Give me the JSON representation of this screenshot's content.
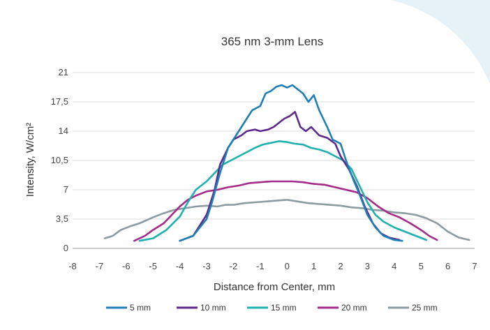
{
  "chart_data": {
    "type": "line",
    "title": "365 nm 3-mm Lens",
    "xlabel": "Distance from Center, mm",
    "ylabel": "Intensity, W/cm²",
    "xlim": [
      -8,
      7
    ],
    "ylim": [
      0,
      21
    ],
    "xticks": [
      "-8",
      "-7",
      "-6",
      "-5",
      "-4",
      "-3",
      "-2",
      "-1",
      "0",
      "1",
      "2",
      "3",
      "4",
      "5",
      "6",
      "7"
    ],
    "yticks": [
      "0",
      "3,5",
      "7",
      "10,5",
      "14",
      "17,5",
      "21"
    ],
    "grid": "horizontal",
    "legend_position": "bottom",
    "series": [
      {
        "name": "5 mm",
        "color": "#1f7fb4",
        "points": [
          [
            -4.0,
            0.9
          ],
          [
            -3.5,
            1.5
          ],
          [
            -3.0,
            3.5
          ],
          [
            -2.8,
            5.5
          ],
          [
            -2.5,
            9.0
          ],
          [
            -2.2,
            12.0
          ],
          [
            -2.0,
            13.0
          ],
          [
            -1.7,
            14.5
          ],
          [
            -1.5,
            15.5
          ],
          [
            -1.3,
            16.5
          ],
          [
            -1.0,
            17.0
          ],
          [
            -0.8,
            18.5
          ],
          [
            -0.6,
            18.8
          ],
          [
            -0.4,
            19.3
          ],
          [
            -0.2,
            19.5
          ],
          [
            0.0,
            19.2
          ],
          [
            0.2,
            19.5
          ],
          [
            0.4,
            19.0
          ],
          [
            0.6,
            18.5
          ],
          [
            0.8,
            17.5
          ],
          [
            1.0,
            18.3
          ],
          [
            1.2,
            16.5
          ],
          [
            1.5,
            14.5
          ],
          [
            1.7,
            13.0
          ],
          [
            2.0,
            12.5
          ],
          [
            2.2,
            10.5
          ],
          [
            2.5,
            8.0
          ],
          [
            2.7,
            6.5
          ],
          [
            3.0,
            4.0
          ],
          [
            3.3,
            2.5
          ],
          [
            3.6,
            1.5
          ],
          [
            4.0,
            1.0
          ],
          [
            4.3,
            0.9
          ]
        ]
      },
      {
        "name": "10 mm",
        "color": "#5c2a8c",
        "points": [
          [
            -4.0,
            0.9
          ],
          [
            -3.5,
            1.5
          ],
          [
            -3.0,
            4.0
          ],
          [
            -2.7,
            7.0
          ],
          [
            -2.5,
            10.0
          ],
          [
            -2.2,
            12.0
          ],
          [
            -2.0,
            13.0
          ],
          [
            -1.7,
            13.5
          ],
          [
            -1.5,
            14.0
          ],
          [
            -1.2,
            14.2
          ],
          [
            -1.0,
            14.0
          ],
          [
            -0.7,
            14.2
          ],
          [
            -0.5,
            14.5
          ],
          [
            -0.3,
            15.0
          ],
          [
            -0.1,
            15.5
          ],
          [
            0.1,
            15.8
          ],
          [
            0.3,
            16.3
          ],
          [
            0.5,
            14.5
          ],
          [
            0.7,
            14.0
          ],
          [
            0.9,
            14.5
          ],
          [
            1.2,
            13.5
          ],
          [
            1.5,
            13.2
          ],
          [
            1.8,
            12.5
          ],
          [
            2.0,
            11.0
          ],
          [
            2.3,
            9.5
          ],
          [
            2.6,
            7.5
          ],
          [
            2.9,
            5.0
          ],
          [
            3.2,
            3.0
          ],
          [
            3.5,
            1.8
          ],
          [
            3.8,
            1.3
          ],
          [
            4.2,
            1.0
          ]
        ]
      },
      {
        "name": "15 mm",
        "color": "#1fb0b0",
        "points": [
          [
            -5.5,
            0.9
          ],
          [
            -5.0,
            1.2
          ],
          [
            -4.5,
            2.2
          ],
          [
            -4.0,
            3.8
          ],
          [
            -3.7,
            5.5
          ],
          [
            -3.4,
            7.0
          ],
          [
            -3.0,
            8.0
          ],
          [
            -2.7,
            9.0
          ],
          [
            -2.4,
            10.0
          ],
          [
            -2.1,
            10.5
          ],
          [
            -1.8,
            11.0
          ],
          [
            -1.5,
            11.5
          ],
          [
            -1.2,
            12.0
          ],
          [
            -0.9,
            12.4
          ],
          [
            -0.6,
            12.6
          ],
          [
            -0.3,
            12.8
          ],
          [
            0.0,
            12.7
          ],
          [
            0.3,
            12.5
          ],
          [
            0.6,
            12.4
          ],
          [
            0.9,
            12.0
          ],
          [
            1.2,
            11.8
          ],
          [
            1.5,
            11.5
          ],
          [
            1.8,
            11.0
          ],
          [
            2.1,
            10.5
          ],
          [
            2.4,
            9.5
          ],
          [
            2.7,
            7.5
          ],
          [
            3.0,
            5.5
          ],
          [
            3.3,
            4.0
          ],
          [
            3.6,
            3.2
          ],
          [
            4.0,
            2.5
          ],
          [
            4.4,
            2.0
          ],
          [
            4.8,
            1.5
          ],
          [
            5.2,
            1.0
          ]
        ]
      },
      {
        "name": "20 mm",
        "color": "#a52a8a",
        "points": [
          [
            -5.7,
            0.9
          ],
          [
            -5.3,
            1.5
          ],
          [
            -5.0,
            2.2
          ],
          [
            -4.6,
            3.0
          ],
          [
            -4.3,
            4.0
          ],
          [
            -4.0,
            5.0
          ],
          [
            -3.7,
            5.8
          ],
          [
            -3.4,
            6.3
          ],
          [
            -3.0,
            6.8
          ],
          [
            -2.6,
            7.0
          ],
          [
            -2.2,
            7.3
          ],
          [
            -1.8,
            7.5
          ],
          [
            -1.4,
            7.8
          ],
          [
            -1.0,
            7.9
          ],
          [
            -0.6,
            8.0
          ],
          [
            -0.2,
            8.0
          ],
          [
            0.2,
            8.0
          ],
          [
            0.6,
            7.9
          ],
          [
            1.0,
            7.7
          ],
          [
            1.4,
            7.6
          ],
          [
            1.8,
            7.3
          ],
          [
            2.2,
            7.0
          ],
          [
            2.6,
            6.7
          ],
          [
            3.0,
            6.0
          ],
          [
            3.4,
            5.0
          ],
          [
            3.8,
            4.2
          ],
          [
            4.2,
            3.7
          ],
          [
            4.6,
            3.0
          ],
          [
            5.0,
            2.2
          ],
          [
            5.3,
            1.5
          ],
          [
            5.6,
            1.0
          ]
        ]
      },
      {
        "name": "25 mm",
        "color": "#8c9ba0",
        "points": [
          [
            -6.8,
            1.2
          ],
          [
            -6.5,
            1.5
          ],
          [
            -6.2,
            2.2
          ],
          [
            -5.8,
            2.7
          ],
          [
            -5.5,
            3.0
          ],
          [
            -5.0,
            3.7
          ],
          [
            -4.6,
            4.2
          ],
          [
            -4.2,
            4.6
          ],
          [
            -3.8,
            4.8
          ],
          [
            -3.4,
            5.0
          ],
          [
            -3.0,
            5.1
          ],
          [
            -2.6,
            5.0
          ],
          [
            -2.3,
            5.2
          ],
          [
            -2.0,
            5.2
          ],
          [
            -1.6,
            5.4
          ],
          [
            -1.2,
            5.5
          ],
          [
            -0.8,
            5.6
          ],
          [
            -0.4,
            5.7
          ],
          [
            0.0,
            5.8
          ],
          [
            0.4,
            5.6
          ],
          [
            0.8,
            5.4
          ],
          [
            1.2,
            5.3
          ],
          [
            1.6,
            5.2
          ],
          [
            2.0,
            5.1
          ],
          [
            2.4,
            4.9
          ],
          [
            2.8,
            4.8
          ],
          [
            3.2,
            4.6
          ],
          [
            3.6,
            4.5
          ],
          [
            4.0,
            4.3
          ],
          [
            4.4,
            4.2
          ],
          [
            4.8,
            4.0
          ],
          [
            5.2,
            3.6
          ],
          [
            5.6,
            3.0
          ],
          [
            6.0,
            2.0
          ],
          [
            6.4,
            1.3
          ],
          [
            6.8,
            1.0
          ]
        ]
      }
    ]
  }
}
